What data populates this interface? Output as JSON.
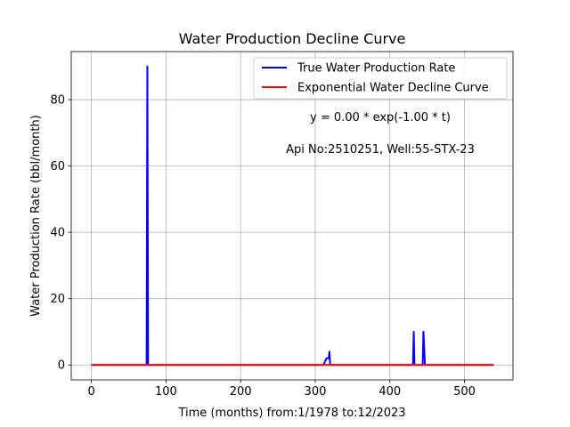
{
  "chart_data": {
    "type": "line",
    "title": "Water Production Decline Curve",
    "xlabel": "Time (months) from:1/1978 to:12/2023",
    "ylabel": "Water Production Rate (bbl/month)",
    "xlim": [
      -27,
      565
    ],
    "ylim": [
      -4.5,
      94.5
    ],
    "xticks": [
      0,
      100,
      200,
      300,
      400,
      500
    ],
    "yticks": [
      0,
      20,
      40,
      60,
      80
    ],
    "grid": true,
    "legend_position": "top-right",
    "annotations": [
      "y = 0.00 * exp(-1.00 * t)",
      "Api No:2510251, Well:55-STX-23"
    ],
    "series": [
      {
        "name": "True Water Production Rate",
        "color": "#0000ff",
        "points": [
          [
            0,
            0
          ],
          [
            74,
            0
          ],
          [
            75,
            90
          ],
          [
            76,
            0
          ],
          [
            311,
            0
          ],
          [
            313,
            1
          ],
          [
            315,
            2
          ],
          [
            318,
            2
          ],
          [
            319,
            4
          ],
          [
            320,
            0
          ],
          [
            431,
            0
          ],
          [
            432,
            10
          ],
          [
            433,
            0
          ],
          [
            444,
            0
          ],
          [
            445,
            10
          ],
          [
            446,
            5
          ],
          [
            447,
            0
          ],
          [
            539,
            0
          ]
        ]
      },
      {
        "name": "Exponential Water Decline Curve",
        "color": "#ff0000",
        "points": [
          [
            0,
            0
          ],
          [
            539,
            0
          ]
        ]
      }
    ]
  }
}
